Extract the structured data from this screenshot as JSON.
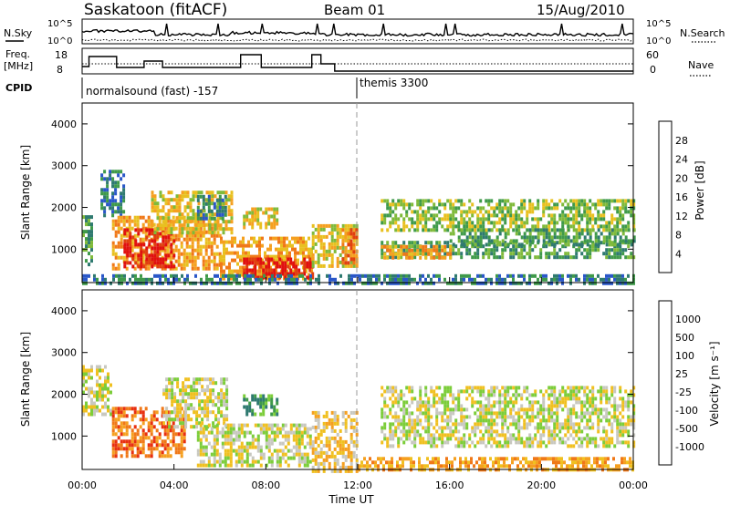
{
  "header": {
    "station": "Saskatoon (fitACF)",
    "beam": "Beam 01",
    "date": "15/Aug/2010"
  },
  "status_panels": {
    "nsky_label": "N.Sky",
    "nsearch_label": "N.Search",
    "count_ticks": [
      "10^5",
      "10^0"
    ],
    "freq_label_line1": "Freq.",
    "freq_label_line2": "[MHz]",
    "freq_ticks": [
      "18",
      "8"
    ],
    "nave_label": "Nave",
    "nave_ticks": [
      "60",
      "0"
    ],
    "cpid_label": "CPID",
    "cpid_segments": [
      {
        "start_hour": 0,
        "label": "normalsound (fast) -157"
      },
      {
        "start_hour": 12,
        "label": "themis 3300"
      }
    ]
  },
  "chart_data": [
    {
      "type": "heatmap",
      "panel": "power",
      "ylabel": "Slant Range [km]",
      "xlabel": "",
      "xlim_hours": [
        0,
        24
      ],
      "ylim": [
        200,
        4500
      ],
      "y_ticks": [
        1000,
        2000,
        3000,
        4000
      ],
      "colorbar": {
        "label": "Power [dB]",
        "ticks": [
          "4",
          "8",
          "12",
          "16",
          "20",
          "24",
          "28"
        ],
        "colors": [
          "#1b1bf0",
          "#2a57c8",
          "#2f7a70",
          "#3f9a4a",
          "#7fba3a",
          "#e8c020",
          "#f5a020",
          "#f07818",
          "#e04010",
          "#e01010"
        ]
      },
      "echo_regions": [
        {
          "t0": 0.0,
          "t1": 0.4,
          "r0": 600,
          "r1": 1900,
          "level": 3
        },
        {
          "t0": 0.8,
          "t1": 1.8,
          "r0": 1800,
          "r1": 2900,
          "level": 2
        },
        {
          "t0": 1.3,
          "t1": 6.0,
          "r0": 500,
          "r1": 1800,
          "level": 6
        },
        {
          "t0": 1.8,
          "t1": 4.0,
          "r0": 600,
          "r1": 1500,
          "level": 9
        },
        {
          "t0": 3.0,
          "t1": 6.5,
          "r0": 1400,
          "r1": 2400,
          "level": 5
        },
        {
          "t0": 5.0,
          "t1": 6.3,
          "r0": 1700,
          "r1": 2300,
          "level": 2
        },
        {
          "t0": 6.0,
          "t1": 10.0,
          "r0": 300,
          "r1": 1300,
          "level": 6
        },
        {
          "t0": 7.0,
          "t1": 10.0,
          "r0": 300,
          "r1": 800,
          "level": 9
        },
        {
          "t0": 7.0,
          "t1": 8.5,
          "r0": 1500,
          "r1": 2000,
          "level": 5
        },
        {
          "t0": 10.0,
          "t1": 12.0,
          "r0": 600,
          "r1": 1600,
          "level": 5
        },
        {
          "t0": 11.3,
          "t1": 12.0,
          "r0": 700,
          "r1": 1500,
          "level": 7
        },
        {
          "t0": 13.0,
          "t1": 24.0,
          "r0": 1500,
          "r1": 2200,
          "level": 4
        },
        {
          "t0": 13.0,
          "t1": 24.0,
          "r0": 800,
          "r1": 1200,
          "level": 3
        },
        {
          "t0": 16.0,
          "t1": 24.0,
          "r0": 1100,
          "r1": 1500,
          "level": 3
        },
        {
          "t0": 13.0,
          "t1": 16.0,
          "r0": 800,
          "r1": 1100,
          "level": 6
        },
        {
          "t0": 0.0,
          "t1": 24.0,
          "r0": 200,
          "r1": 400,
          "level": 2
        }
      ]
    },
    {
      "type": "heatmap",
      "panel": "velocity",
      "ylabel": "Slant Range [km]",
      "xlabel": "Time UT",
      "xlim_hours": [
        0,
        24
      ],
      "ylim": [
        200,
        4500
      ],
      "y_ticks": [
        1000,
        2000,
        3000,
        4000
      ],
      "x_ticks": [
        "00:00",
        "04:00",
        "08:00",
        "12:00",
        "16:00",
        "20:00",
        "00:00"
      ],
      "colorbar": {
        "label": "Velocity [m s⁻¹]",
        "ticks": [
          "1000",
          "500",
          "100",
          "25",
          "-25",
          "-100",
          "-500",
          "-1000"
        ],
        "colors": [
          "#1840c8",
          "#2060e0",
          "#2f7a70",
          "#3f9a4a",
          "#7ccd3a",
          "#c8c8c0",
          "#f0c020",
          "#f5a020",
          "#f07818",
          "#e83010",
          "#e01010"
        ]
      },
      "echo_regions": [
        {
          "t0": 0.0,
          "t1": 1.3,
          "r0": 1500,
          "r1": 2700,
          "level": 5
        },
        {
          "t0": 1.3,
          "t1": 4.5,
          "r0": 500,
          "r1": 1700,
          "level": 8
        },
        {
          "t0": 3.5,
          "t1": 6.3,
          "r0": 1200,
          "r1": 2400,
          "level": 5
        },
        {
          "t0": 5.0,
          "t1": 10.0,
          "r0": 300,
          "r1": 1300,
          "level": 5
        },
        {
          "t0": 7.0,
          "t1": 8.5,
          "r0": 1500,
          "r1": 2000,
          "level": 3
        },
        {
          "t0": 10.0,
          "t1": 12.0,
          "r0": 200,
          "r1": 1600,
          "level": 6
        },
        {
          "t0": 13.0,
          "t1": 24.0,
          "r0": 800,
          "r1": 2200,
          "level": 5
        },
        {
          "t0": 12.0,
          "t1": 24.0,
          "r0": 200,
          "r1": 500,
          "level": 7
        }
      ]
    }
  ]
}
